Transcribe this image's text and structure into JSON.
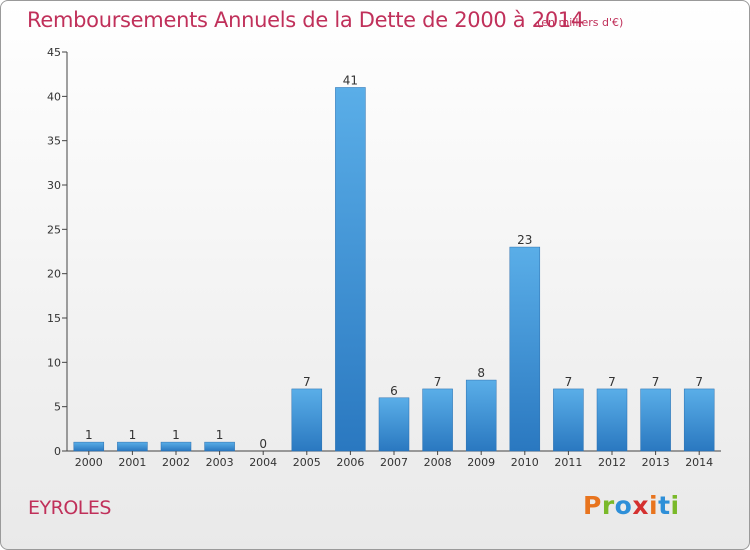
{
  "chart_data": {
    "type": "bar",
    "title": "Remboursements Annuels de la Dette de 2000 à 2014",
    "subtitle": "(en milliers d'€)",
    "categories": [
      "2000",
      "2001",
      "2002",
      "2003",
      "2004",
      "2005",
      "2006",
      "2007",
      "2008",
      "2009",
      "2010",
      "2011",
      "2012",
      "2013",
      "2014"
    ],
    "values": [
      1,
      1,
      1,
      1,
      0,
      7,
      41,
      6,
      7,
      8,
      23,
      7,
      7,
      7,
      7
    ],
    "data_labels": [
      "1",
      "1",
      "1",
      "1",
      "0",
      "7",
      "41",
      "6",
      "7",
      "8",
      "23",
      "7",
      "7",
      "7",
      "7"
    ],
    "ylim": [
      0,
      45
    ],
    "yticks": [
      0,
      5,
      10,
      15,
      20,
      25,
      30,
      35,
      40,
      45
    ],
    "xlabel": "",
    "ylabel": "",
    "grid": false,
    "bar_color": "#3d94d8"
  },
  "footer": {
    "commune": "EYROLES",
    "brand": "Proxiti"
  },
  "colors": {
    "title": "#c0305a",
    "brand_letters": [
      "#e8741e",
      "#7ab929",
      "#2e8fd8",
      "#d4302f",
      "#e8741e",
      "#2e8fd8",
      "#7ab929"
    ]
  }
}
